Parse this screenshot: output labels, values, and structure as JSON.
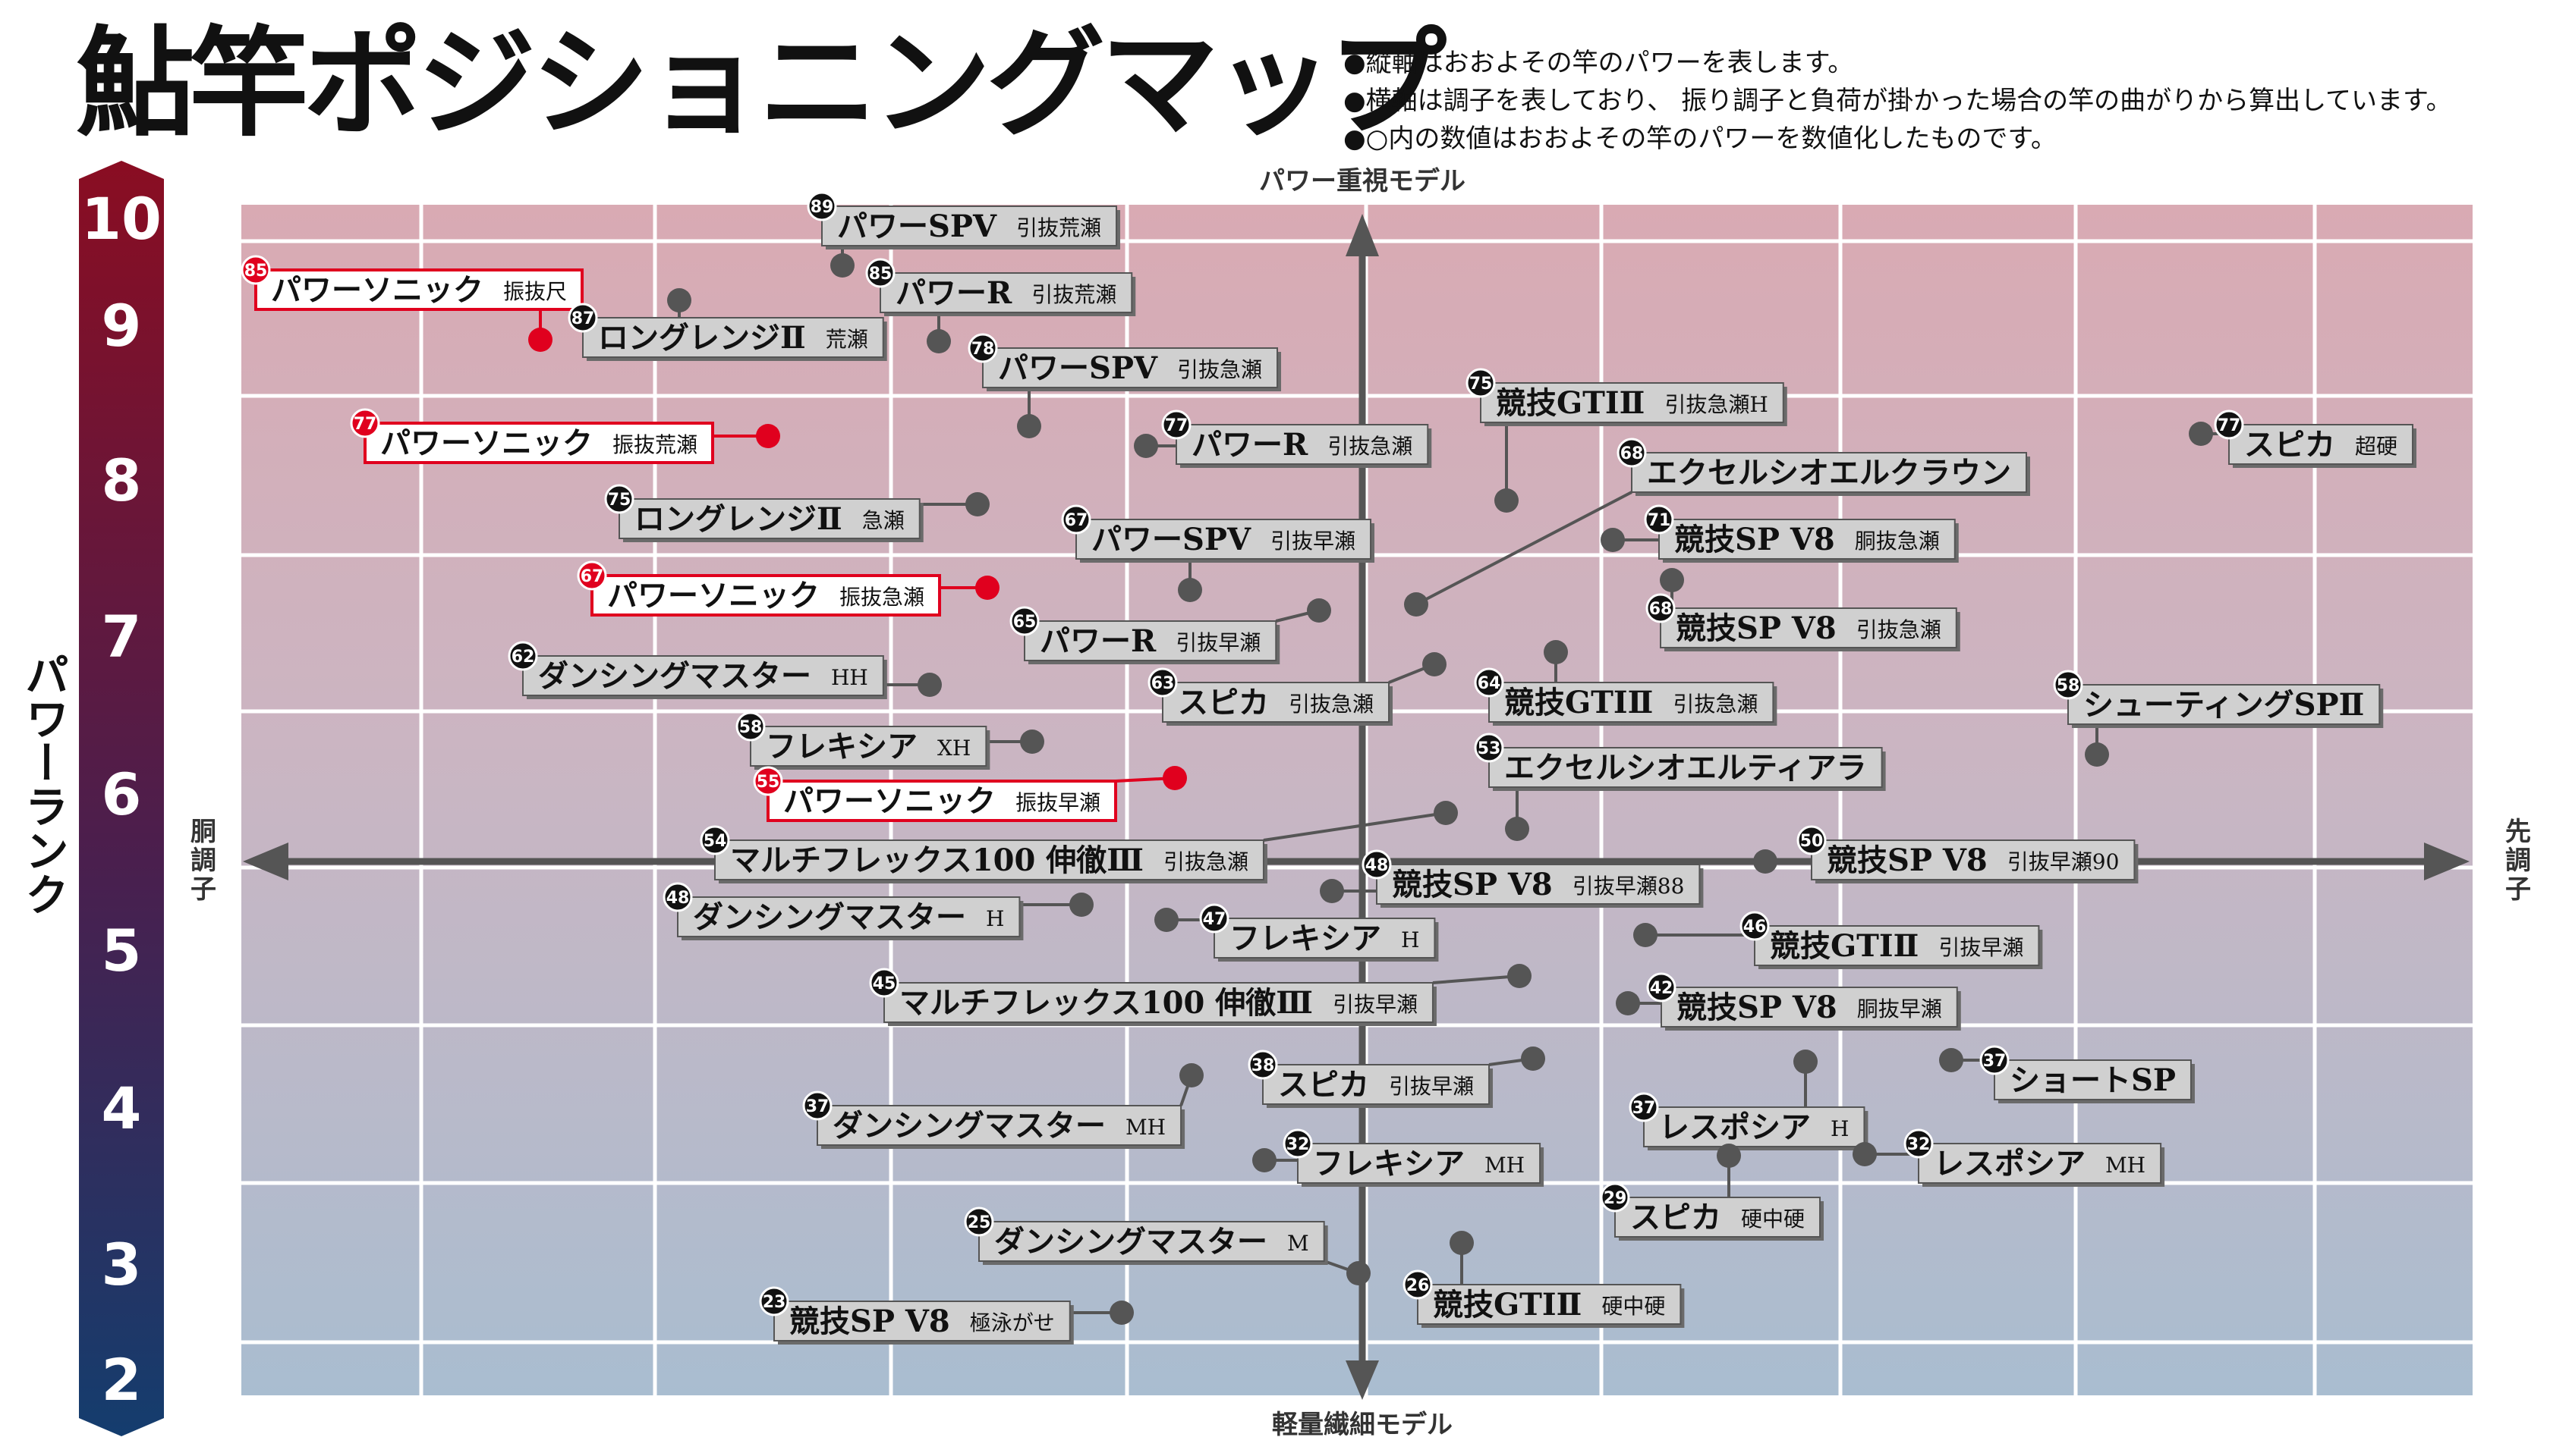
{
  "title": "鮎竿ポジショニングマップ",
  "notes": [
    "●縦軸はおおよその竿のパワーを表します。",
    "●横軸は調子を表しており、 振り調子と負荷が掛かった場合の竿の曲がりから算出しています。",
    "●○内の数値はおおよその竿のパワーを数値化したものです。"
  ],
  "rank_label": "パワーランク",
  "axis": {
    "top": "パワー重視モデル",
    "bottom": "軽量繊細モデル",
    "left": "胴調子",
    "right": "先調子"
  },
  "colors": {
    "highlight_red": "#e0001e",
    "label_fill": "#d0d0d0",
    "dot": "#555555",
    "axis": "#555555",
    "rank_top": "#8a0d22",
    "rank_bottom": "#143d6e"
  },
  "chart_data": {
    "type": "scatter",
    "y_ticks": [
      "10",
      "9",
      "8",
      "7",
      "6",
      "5",
      "4",
      "3",
      "2"
    ],
    "points": [
      {
        "power": 89,
        "name": "パワーSPⅤ",
        "sub": "引抜荒瀬",
        "highlight": false
      },
      {
        "power": 85,
        "name": "パワーソニック",
        "sub": "振抜尺",
        "highlight": true
      },
      {
        "power": 85,
        "name": "パワーR",
        "sub": "引抜荒瀬",
        "highlight": false
      },
      {
        "power": 87,
        "name": "ロングレンジⅡ",
        "sub": "荒瀬",
        "highlight": false
      },
      {
        "power": 78,
        "name": "パワーSPⅤ",
        "sub": "引抜急瀬",
        "highlight": false
      },
      {
        "power": 75,
        "name": "競技GTⅠⅡ",
        "sub": "引抜急瀬H",
        "highlight": false
      },
      {
        "power": 77,
        "name": "パワーソニック",
        "sub": "振抜荒瀬",
        "highlight": true
      },
      {
        "power": 77,
        "name": "パワーR",
        "sub": "引抜急瀬",
        "highlight": false
      },
      {
        "power": 77,
        "name": "スピカ",
        "sub": "超硬",
        "highlight": false
      },
      {
        "power": 68,
        "name": "エクセルシオエルクラウン",
        "sub": "",
        "highlight": false
      },
      {
        "power": 75,
        "name": "ロングレンジⅡ",
        "sub": "急瀬",
        "highlight": false
      },
      {
        "power": 71,
        "name": "競技SP V8",
        "sub": "胴抜急瀬",
        "highlight": false
      },
      {
        "power": 67,
        "name": "パワーSPⅤ",
        "sub": "引抜早瀬",
        "highlight": false
      },
      {
        "power": 67,
        "name": "パワーソニック",
        "sub": "振抜急瀬",
        "highlight": true
      },
      {
        "power": 68,
        "name": "競技SP V8",
        "sub": "引抜急瀬",
        "highlight": false
      },
      {
        "power": 65,
        "name": "パワーR",
        "sub": "引抜早瀬",
        "highlight": false
      },
      {
        "power": 62,
        "name": "ダンシングマスター",
        "sub": "HH",
        "highlight": false
      },
      {
        "power": 63,
        "name": "スピカ",
        "sub": "引抜急瀬",
        "highlight": false
      },
      {
        "power": 64,
        "name": "競技GTⅠⅡ",
        "sub": "引抜急瀬",
        "highlight": false
      },
      {
        "power": 58,
        "name": "シューティングSPⅡ",
        "sub": "",
        "highlight": false
      },
      {
        "power": 58,
        "name": "フレキシア",
        "sub": "XH",
        "highlight": false
      },
      {
        "power": 53,
        "name": "エクセルシオエルティアラ",
        "sub": "",
        "highlight": false
      },
      {
        "power": 55,
        "name": "パワーソニック",
        "sub": "振抜早瀬",
        "highlight": true
      },
      {
        "power": 54,
        "name": "マルチフレックス100 伸徹Ⅲ",
        "sub": "引抜急瀬",
        "highlight": false
      },
      {
        "power": 50,
        "name": "競技SP V8",
        "sub": "引抜早瀬90",
        "highlight": false
      },
      {
        "power": 48,
        "name": "競技SP V8",
        "sub": "引抜早瀬88",
        "highlight": false
      },
      {
        "power": 48,
        "name": "ダンシングマスター",
        "sub": "H",
        "highlight": false
      },
      {
        "power": 47,
        "name": "フレキシア",
        "sub": "H",
        "highlight": false
      },
      {
        "power": 46,
        "name": "競技GTⅠⅡ",
        "sub": "引抜早瀬",
        "highlight": false
      },
      {
        "power": 45,
        "name": "マルチフレックス100 伸徹Ⅲ",
        "sub": "引抜早瀬",
        "highlight": false
      },
      {
        "power": 42,
        "name": "競技SP V8",
        "sub": "胴抜早瀬",
        "highlight": false
      },
      {
        "power": 38,
        "name": "スピカ",
        "sub": "引抜早瀬",
        "highlight": false
      },
      {
        "power": 37,
        "name": "ショートSP",
        "sub": "",
        "highlight": false
      },
      {
        "power": 37,
        "name": "ダンシングマスター",
        "sub": "MH",
        "highlight": false
      },
      {
        "power": 37,
        "name": "レスポシア",
        "sub": "H",
        "highlight": false
      },
      {
        "power": 32,
        "name": "フレキシア",
        "sub": "MH",
        "highlight": false
      },
      {
        "power": 32,
        "name": "レスポシア",
        "sub": "MH",
        "highlight": false
      },
      {
        "power": 29,
        "name": "スピカ",
        "sub": "硬中硬",
        "highlight": false
      },
      {
        "power": 25,
        "name": "ダンシングマスター",
        "sub": "M",
        "highlight": false
      },
      {
        "power": 26,
        "name": "競技GTⅠⅡ",
        "sub": "硬中硬",
        "highlight": false
      },
      {
        "power": 23,
        "name": "競技SP V8",
        "sub": "極泳がせ",
        "highlight": false
      }
    ]
  }
}
